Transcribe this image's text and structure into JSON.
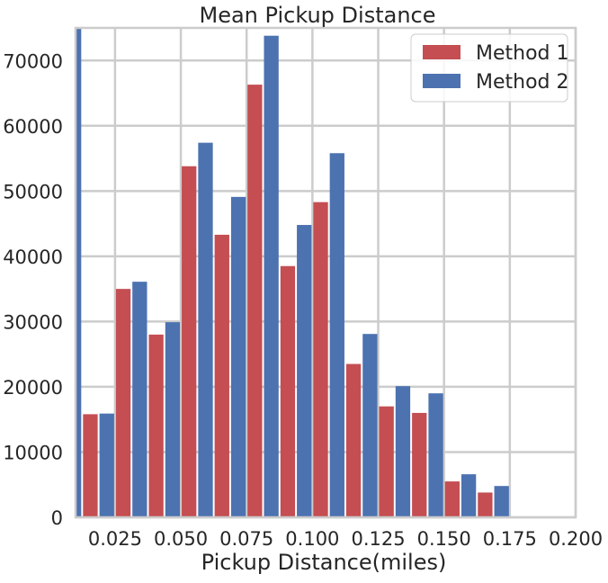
{
  "chart_data": {
    "type": "bar",
    "title": "Mean Pickup Distance",
    "xlabel": "Pickup Distance(miles)",
    "ylabel": "",
    "xlim": [
      0.01,
      0.2
    ],
    "ylim": [
      0,
      75000
    ],
    "grid": true,
    "legend_position": "top-right",
    "x_ticks": [
      "0.025",
      "0.050",
      "0.075",
      "0.100",
      "0.125",
      "0.150",
      "0.175",
      "0.200"
    ],
    "y_ticks": [
      "0",
      "10000",
      "20000",
      "30000",
      "40000",
      "50000",
      "60000",
      "70000"
    ],
    "categories": [
      0.0125,
      0.025,
      0.0375,
      0.05,
      0.0625,
      0.075,
      0.0875,
      0.1,
      0.1125,
      0.125,
      0.1375,
      0.15,
      0.1625,
      0.175,
      0.1875,
      0.2
    ],
    "series": [
      {
        "name": "Method 1",
        "color": "#c44e52",
        "values": [
          null,
          15800,
          35000,
          28000,
          53800,
          43300,
          66300,
          38500,
          48300,
          23500,
          17000,
          16000,
          5500,
          3800,
          null,
          null
        ]
      },
      {
        "name": "Method 2",
        "color": "#4c72b0",
        "values": [
          75000,
          15900,
          36100,
          29900,
          57400,
          49100,
          73800,
          44800,
          55800,
          28100,
          20100,
          19000,
          6600,
          4800,
          null,
          null
        ]
      }
    ]
  }
}
